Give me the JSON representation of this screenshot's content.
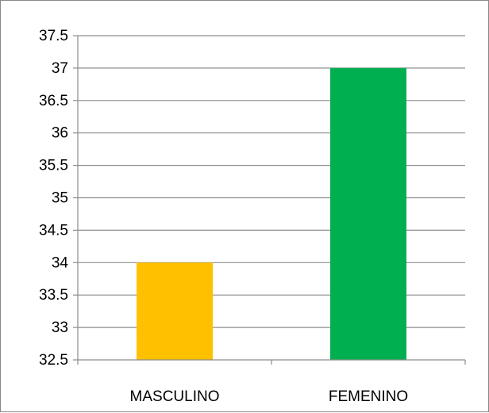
{
  "chart_data": {
    "type": "bar",
    "categories": [
      "MASCULINO",
      "FEMENINO"
    ],
    "values": [
      34,
      37
    ],
    "bar_colors": [
      "#FFC000",
      "#00B050"
    ],
    "ylim": [
      32.5,
      37.5
    ],
    "yticks": [
      "32.5",
      "33",
      "33.5",
      "34",
      "34.5",
      "35",
      "35.5",
      "36",
      "36.5",
      "37",
      "37.5"
    ],
    "title": "",
    "xlabel": "",
    "ylabel": "",
    "grid": true,
    "legend": "none"
  },
  "colors": {
    "gridline": "#8c8c8c",
    "axis": "#8c8c8c",
    "frame_border": "#888888"
  }
}
